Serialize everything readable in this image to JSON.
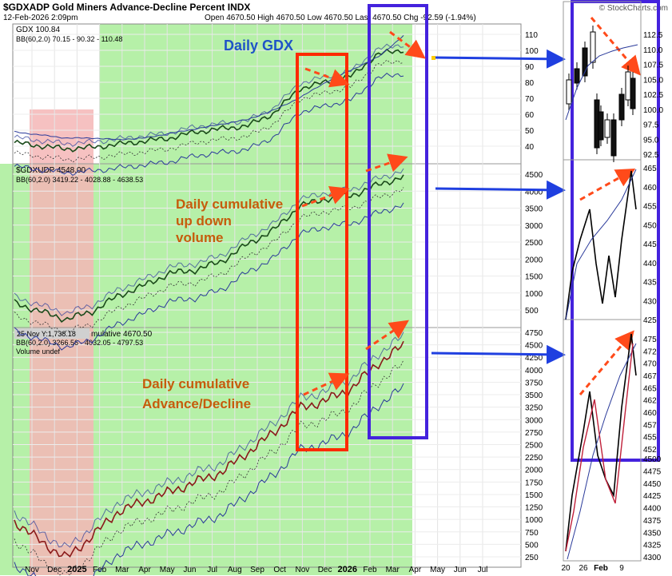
{
  "header": {
    "title": "$GDXADP Gold Miners Advance-Decline Percent INDX",
    "date": "12-Feb-2026 2:09pm",
    "ohlc": "Open 4670.50  High 4670.50  Low 4670.50  Last 4670.50  Chg -92.59 (-1.94%)",
    "logo": "© StockCharts.com"
  },
  "panels": {
    "gdx": {
      "legend1": "GDX 100.84",
      "legend2": "BB(60,2.0) 70.15 - 90.32 - 110.48",
      "annotation": "Daily GDX",
      "axis_ticks": [
        "110",
        "100",
        "90",
        "80",
        "70",
        "60",
        "50",
        "40"
      ]
    },
    "updown": {
      "legend1": "$GDXUDP 4548.00",
      "legend2": "BB(60,2.0) 3419.22 - 4028.88 - 4638.53",
      "annotation_lines": [
        "Daily cumulative",
        "up down",
        "volume"
      ],
      "axis_ticks": [
        "4500",
        "4000",
        "3500",
        "3000",
        "2500",
        "2000",
        "1500",
        "1000",
        "500"
      ]
    },
    "ad": {
      "tooltip": "25 Nov Y:1,738.18",
      "legend1": "mulative 4670.50",
      "legend2": "BB(60,2.0) 3266.56 - 4032.05 - 4797.53",
      "legend3": "Volume undef",
      "annotation_lines": [
        "Daily cumulative",
        "Advance/Decline"
      ],
      "axis_ticks": [
        "4750",
        "4500",
        "4250",
        "4000",
        "3750",
        "3500",
        "3250",
        "3000",
        "2750",
        "2500",
        "2250",
        "2000",
        "1750",
        "1500",
        "1250",
        "1000",
        "750",
        "500",
        "250"
      ]
    }
  },
  "x_axis": [
    "Nov",
    "Dec",
    "2025",
    "Feb",
    "Mar",
    "Apr",
    "May",
    "Jun",
    "Jul",
    "Aug",
    "Sep",
    "Oct",
    "Nov",
    "Dec",
    "2026",
    "Feb",
    "Mar",
    "Apr",
    "May",
    "Jun",
    "Jul"
  ],
  "zoom": {
    "gdx_ticks": [
      "112.5",
      "110.0",
      "107.5",
      "105.0",
      "102.5",
      "100.0",
      "97.5",
      "95.0",
      "92.5"
    ],
    "updown_ticks": [
      "465",
      "460",
      "455",
      "450",
      "445",
      "440",
      "435",
      "430",
      "425"
    ],
    "ad_ticks": [
      "475",
      "472",
      "470",
      "467",
      "465",
      "462",
      "460",
      "457",
      "455",
      "452"
    ],
    "ad_lower_ticks": [
      "4500",
      "4475",
      "4450",
      "4425",
      "4400",
      "4375",
      "4350",
      "4325",
      "4300"
    ],
    "x_axis": [
      "20",
      "26",
      "Feb",
      "9"
    ]
  },
  "colors": {
    "green_zone": "#b6f0a8",
    "red_zone": "#f4b6b6",
    "red_box": "#ff2a00",
    "blue_box": "#4422dd",
    "annotation_orange": "#c65c0c",
    "annotation_blue": "#1f54c7",
    "arrow_dash": "#ff4a1a",
    "arrow_blue": "#1f3fe0"
  },
  "chart_data": [
    {
      "type": "line",
      "title": "Daily GDX",
      "ylim": [
        30,
        115
      ],
      "x": [
        "Nov",
        "Dec",
        "2025",
        "Feb",
        "Mar",
        "Apr",
        "May",
        "Jun",
        "Jul",
        "Aug",
        "Sep",
        "Oct",
        "Nov",
        "Dec",
        "2026",
        "Feb"
      ],
      "series": [
        {
          "name": "GDX",
          "values": [
            41,
            39,
            37,
            38,
            40,
            42,
            44,
            48,
            50,
            52,
            60,
            76,
            80,
            84,
            98,
            101
          ]
        },
        {
          "name": "BB(60,2.0)",
          "values": [
            48,
            46,
            44,
            44,
            43,
            44,
            47,
            50,
            53,
            56,
            62,
            70,
            80,
            88,
            96,
            110
          ]
        }
      ]
    },
    {
      "type": "line",
      "title": "Daily cumulative up down volume",
      "ylim": [
        300,
        4800
      ],
      "x": [
        "Nov",
        "Dec",
        "2025",
        "Feb",
        "Mar",
        "Apr",
        "May",
        "Jun",
        "Jul",
        "Aug",
        "Sep",
        "Oct",
        "Nov",
        "Dec",
        "2026",
        "Feb"
      ],
      "series": [
        {
          "name": "$GDXUDP",
          "values": [
            900,
            650,
            420,
            650,
            1100,
            1400,
            1750,
            1850,
            2100,
            2600,
            3000,
            3700,
            3900,
            4000,
            4300,
            4548
          ]
        }
      ]
    },
    {
      "type": "line",
      "title": "Daily cumulative Advance/Decline",
      "ylim": [
        250,
        5000
      ],
      "x": [
        "Nov",
        "Dec",
        "2025",
        "Feb",
        "Mar",
        "Apr",
        "May",
        "Jun",
        "Jul",
        "Aug",
        "Sep",
        "Oct",
        "Nov",
        "Dec",
        "2026",
        "Feb"
      ],
      "series": [
        {
          "name": "cumulative",
          "values": [
            1100,
            700,
            350,
            800,
            1300,
            1500,
            1700,
            1900,
            2100,
            2500,
            2900,
            3400,
            3550,
            3800,
            4300,
            4670.5
          ]
        }
      ]
    }
  ]
}
